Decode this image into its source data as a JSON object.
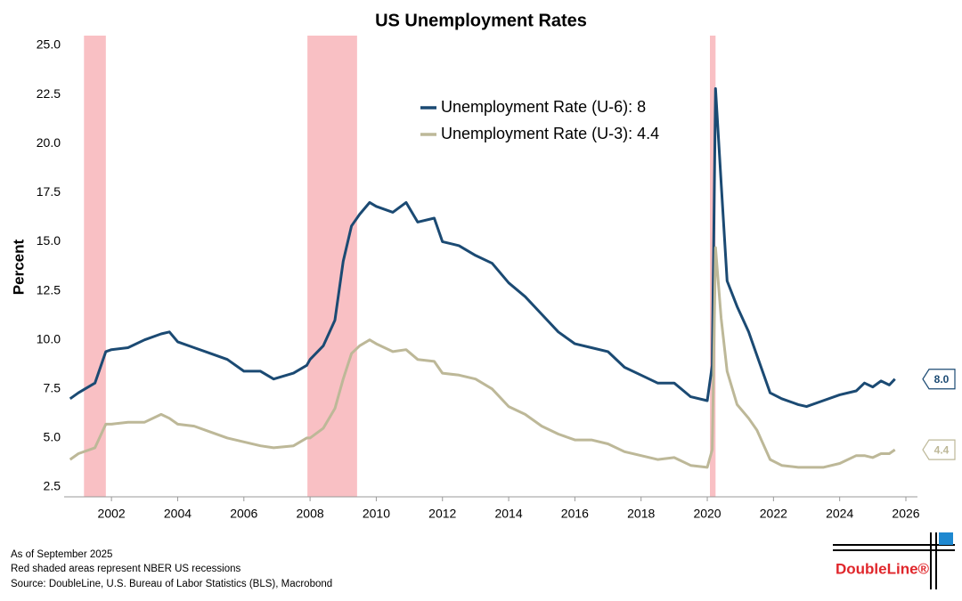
{
  "chart_data": {
    "type": "line",
    "title": "US Unemployment Rates",
    "y_label": "Percent",
    "x": [
      2000.75,
      2001.0,
      2001.5,
      2001.83,
      2002.0,
      2002.5,
      2003.0,
      2003.5,
      2003.75,
      2004.0,
      2004.5,
      2005.0,
      2005.5,
      2006.0,
      2006.5,
      2006.9,
      2007.5,
      2007.9,
      2008.0,
      2008.4,
      2008.75,
      2009.0,
      2009.25,
      2009.5,
      2009.8,
      2010.0,
      2010.5,
      2010.9,
      2011.25,
      2011.75,
      2012.0,
      2012.5,
      2013.0,
      2013.5,
      2014.0,
      2014.5,
      2015.0,
      2015.5,
      2016.0,
      2016.5,
      2017.0,
      2017.5,
      2018.0,
      2018.5,
      2019.0,
      2019.5,
      2020.0,
      2020.15,
      2020.25,
      2020.42,
      2020.6,
      2020.9,
      2021.25,
      2021.5,
      2021.9,
      2022.25,
      2022.75,
      2023.0,
      2023.5,
      2024.0,
      2024.5,
      2024.75,
      2025.0,
      2025.25,
      2025.5,
      2025.67
    ],
    "series": [
      {
        "name": "Unemployment Rate (U-6): 8",
        "color": "#1b4a73",
        "end_label": "8.0",
        "values": [
          7.0,
          7.3,
          7.8,
          9.4,
          9.5,
          9.6,
          10.0,
          10.3,
          10.4,
          9.9,
          9.6,
          9.3,
          9.0,
          8.4,
          8.4,
          8.0,
          8.3,
          8.7,
          9.0,
          9.7,
          11.0,
          14.0,
          15.8,
          16.4,
          17.0,
          16.8,
          16.5,
          17.0,
          16.0,
          16.2,
          15.0,
          14.8,
          14.3,
          13.9,
          12.9,
          12.2,
          11.3,
          10.4,
          9.8,
          9.6,
          9.4,
          8.6,
          8.2,
          7.8,
          7.8,
          7.1,
          6.9,
          8.7,
          22.8,
          18.0,
          13.0,
          11.7,
          10.4,
          9.2,
          7.3,
          7.0,
          6.7,
          6.6,
          6.9,
          7.2,
          7.4,
          7.8,
          7.6,
          7.9,
          7.7,
          8.0
        ]
      },
      {
        "name": "Unemployment Rate (U-3): 4.4",
        "color": "#bdb898",
        "end_label": "4.4",
        "values": [
          3.9,
          4.2,
          4.5,
          5.7,
          5.7,
          5.8,
          5.8,
          6.2,
          6.0,
          5.7,
          5.6,
          5.3,
          5.0,
          4.8,
          4.6,
          4.5,
          4.6,
          5.0,
          5.0,
          5.5,
          6.5,
          8.0,
          9.3,
          9.7,
          10.0,
          9.8,
          9.4,
          9.5,
          9.0,
          8.9,
          8.3,
          8.2,
          8.0,
          7.5,
          6.6,
          6.2,
          5.6,
          5.2,
          4.9,
          4.9,
          4.7,
          4.3,
          4.1,
          3.9,
          4.0,
          3.6,
          3.5,
          4.4,
          14.7,
          11.1,
          8.4,
          6.7,
          6.0,
          5.4,
          3.9,
          3.6,
          3.5,
          3.5,
          3.5,
          3.7,
          4.1,
          4.1,
          4.0,
          4.2,
          4.2,
          4.4
        ]
      }
    ],
    "recessions": [
      [
        2001.17,
        2001.83
      ],
      [
        2007.92,
        2009.42
      ],
      [
        2020.08,
        2020.25
      ]
    ],
    "recession_color": "#f9c0c4",
    "xlim": [
      2000.57,
      2026.35
    ],
    "xticks": [
      2002,
      2004,
      2006,
      2008,
      2010,
      2012,
      2014,
      2016,
      2018,
      2020,
      2022,
      2024,
      2026
    ],
    "ylim": [
      2.0,
      25.5
    ],
    "yticks": [
      2.5,
      {
        "value": 5,
        "label": "5.0"
      },
      7.5,
      {
        "value": 10,
        "label": "10.0"
      },
      12.5,
      {
        "value": 15,
        "label": "15.0"
      },
      17.5,
      {
        "value": 20,
        "label": "20.0"
      },
      22.5,
      {
        "value": 25,
        "label": "25.0"
      }
    ],
    "grid": false,
    "notes": [
      "As of September 2025",
      "Red shaded areas represent NBER US recessions",
      "Source: DoubleLine, U.S. Bureau of Labor Statistics (BLS), Macrobond"
    ],
    "logo": "DoubleLine®"
  }
}
